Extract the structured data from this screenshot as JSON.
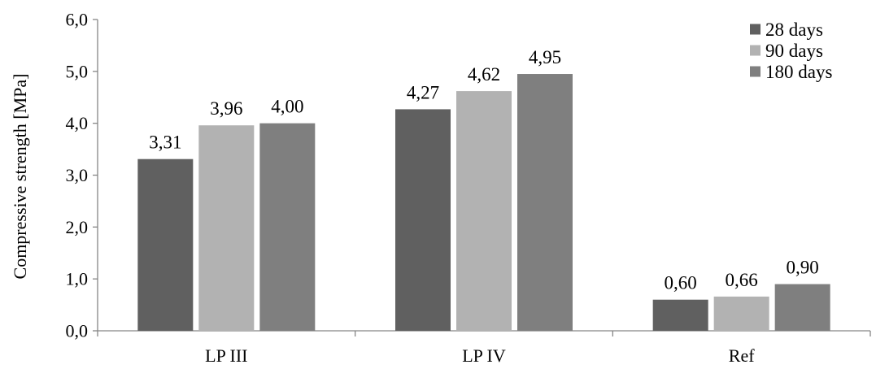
{
  "chart_data": {
    "type": "bar",
    "title": "",
    "xlabel": "",
    "ylabel": "Compressive strength [MPa]",
    "ylim": [
      0,
      6
    ],
    "yticks": [
      "0,0",
      "1,0",
      "2,0",
      "3,0",
      "4,0",
      "5,0",
      "6,0"
    ],
    "categories": [
      "LP III",
      "LP IV",
      "Ref"
    ],
    "series": [
      {
        "name": "28 days",
        "values": [
          3.31,
          4.27,
          0.6
        ],
        "labels": [
          "3,31",
          "4,27",
          "0,60"
        ],
        "color": "#606060"
      },
      {
        "name": "90 days",
        "values": [
          3.96,
          4.62,
          0.66
        ],
        "labels": [
          "3,96",
          "4,62",
          "0,66"
        ],
        "color": "#b2b2b2"
      },
      {
        "name": "180 days",
        "values": [
          4.0,
          4.95,
          0.9
        ],
        "labels": [
          "4,00",
          "4,95",
          "0,90"
        ],
        "color": "#7f7f7f"
      }
    ],
    "grid": false,
    "legend_position": "top-right"
  }
}
